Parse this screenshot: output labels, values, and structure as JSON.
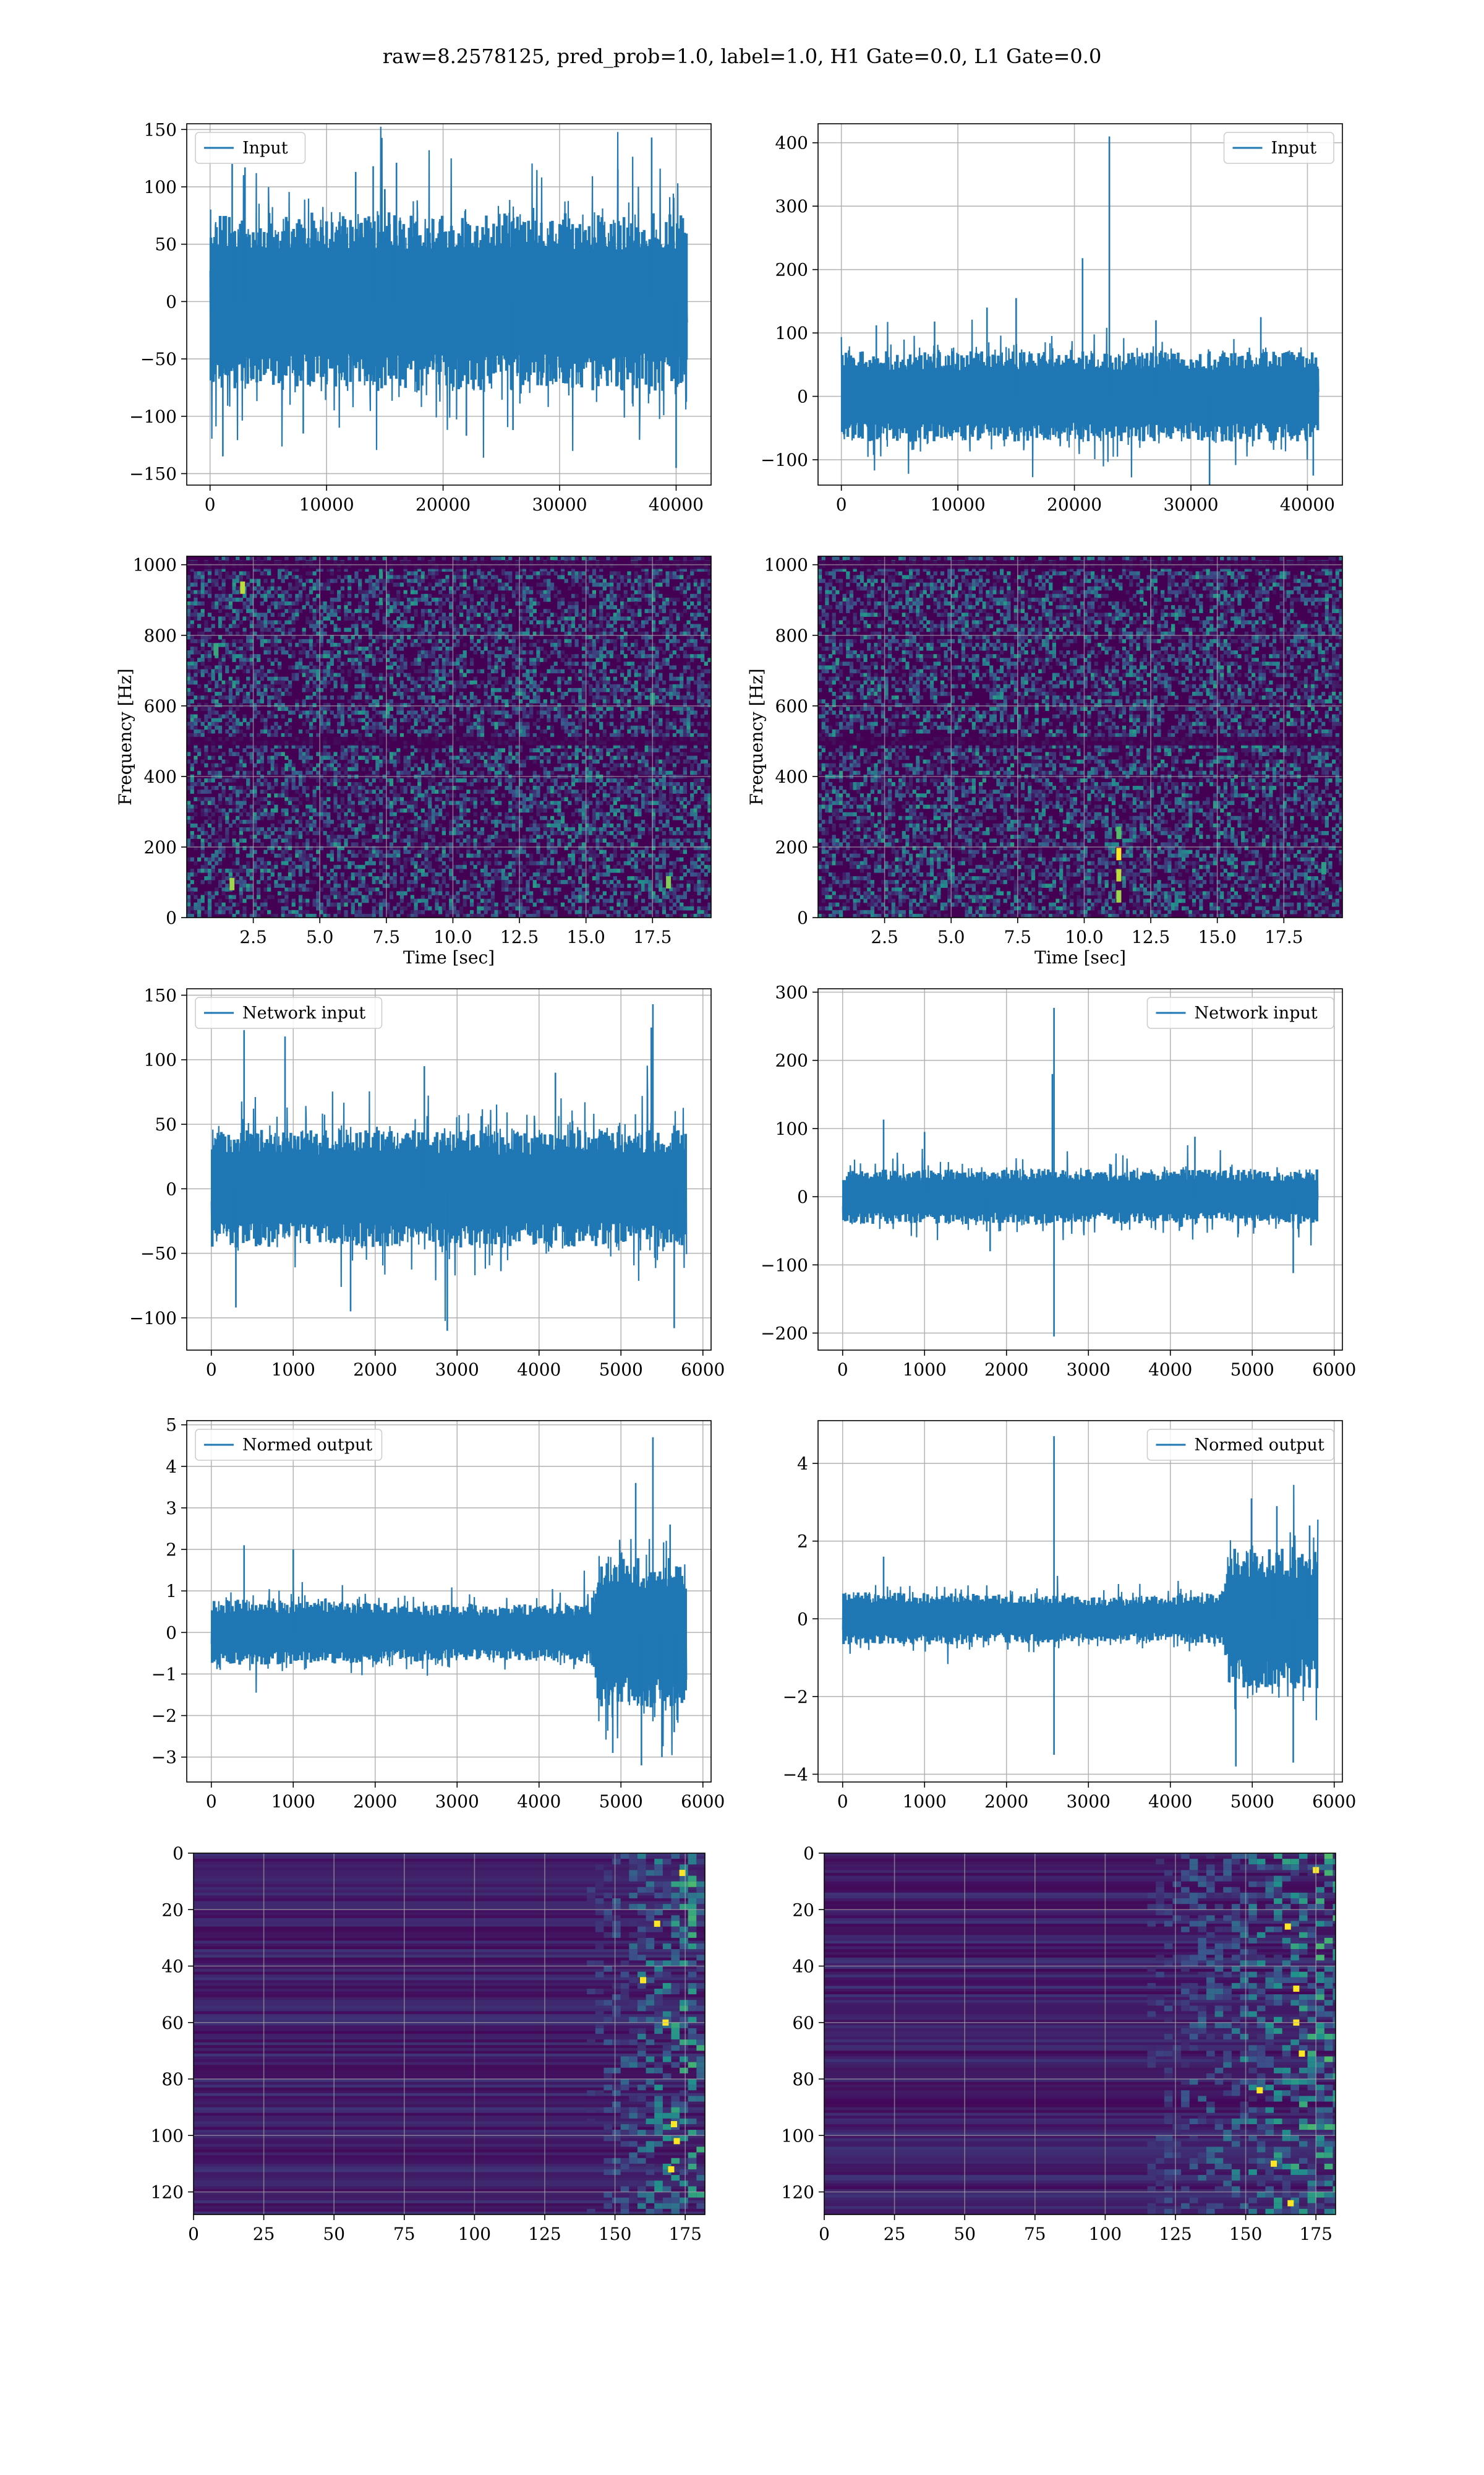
{
  "figure": {
    "suptitle": "raw=8.2578125, pred_prob=1.0, label=1.0, H1 Gate=0.0, L1 Gate=0.0",
    "colors": {
      "line": "#1f77b4",
      "grid": "#b0b0b0",
      "spec_bg": "#440154",
      "spec_mid": "#3b528b",
      "spec_hi": "#21918c",
      "spec_top": "#fde725"
    }
  },
  "chart_data": [
    {
      "id": "p11",
      "type": "line",
      "legend": "Input",
      "legend_loc": "upper left",
      "xlim": [
        -2000,
        43000
      ],
      "ylim": [
        -160,
        155
      ],
      "xticks": [
        0,
        10000,
        20000,
        30000,
        40000
      ],
      "xtick_labels": [
        "0",
        "10000",
        "20000",
        "30000",
        "40000"
      ],
      "yticks": [
        -150,
        -100,
        -50,
        0,
        50,
        100,
        150
      ],
      "ytick_labels": [
        "−150",
        "−100",
        "−50",
        "0",
        "50",
        "100",
        "150"
      ],
      "xlabel": "",
      "ylabel": "",
      "series": [
        {
          "n": 40960,
          "env": [
            [
              0,
              82
            ],
            [
              1,
              82
            ]
          ],
          "spikes": [
            [
              40000,
              -145
            ],
            [
              37900,
              143
            ],
            [
              1100,
              -135
            ],
            [
              16000,
              121
            ],
            [
              1900,
              120
            ],
            [
              14000,
              118
            ],
            [
              22000,
              -117
            ],
            [
              3000,
              117
            ],
            [
              35000,
              115
            ],
            [
              8000,
              -115
            ],
            [
              26000,
              -112
            ],
            [
              12500,
              113
            ]
          ]
        }
      ]
    },
    {
      "id": "p12",
      "type": "line",
      "legend": "Input",
      "legend_loc": "upper right",
      "xlim": [
        -2000,
        43000
      ],
      "ylim": [
        -140,
        430
      ],
      "xticks": [
        0,
        10000,
        20000,
        30000,
        40000
      ],
      "xtick_labels": [
        "0",
        "10000",
        "20000",
        "30000",
        "40000"
      ],
      "yticks": [
        -100,
        0,
        100,
        200,
        300,
        400
      ],
      "ytick_labels": [
        "−100",
        "0",
        "100",
        "200",
        "300",
        "400"
      ],
      "xlabel": "",
      "ylabel": "",
      "series": [
        {
          "n": 40960,
          "env": [
            [
              0,
              75
            ],
            [
              1,
              75
            ]
          ],
          "spikes": [
            [
              23000,
              410
            ],
            [
              20700,
              218
            ],
            [
              15000,
              155
            ],
            [
              31600,
              -140
            ],
            [
              40500,
              -125
            ],
            [
              12500,
              140
            ],
            [
              36000,
              125
            ],
            [
              8000,
              118
            ],
            [
              3000,
              112
            ],
            [
              27000,
              120
            ]
          ]
        }
      ]
    },
    {
      "id": "p21",
      "type": "heatmap",
      "xlim": [
        0,
        19.7
      ],
      "ylim": [
        0,
        1024
      ],
      "xticks": [
        2.5,
        5.0,
        7.5,
        10.0,
        12.5,
        15.0,
        17.5
      ],
      "xtick_labels": [
        "2.5",
        "5.0",
        "7.5",
        "10.0",
        "12.5",
        "15.0",
        "17.5"
      ],
      "yticks": [
        0,
        200,
        400,
        600,
        800,
        1000
      ],
      "ytick_labels": [
        "0",
        "200",
        "400",
        "600",
        "800",
        "1000"
      ],
      "xlabel": "Time [sec]",
      "ylabel": "Frequency [Hz]",
      "dark_bands_hz": [
        500,
        1000
      ],
      "hot_spots": [
        [
          2.1,
          935,
          0.9
        ],
        [
          1.7,
          95,
          0.85
        ],
        [
          18.1,
          100,
          0.8
        ],
        [
          1.1,
          760,
          0.6
        ],
        [
          17.5,
          620,
          0.55
        ]
      ]
    },
    {
      "id": "p22",
      "type": "heatmap",
      "xlim": [
        0,
        19.7
      ],
      "ylim": [
        0,
        1024
      ],
      "xticks": [
        2.5,
        5.0,
        7.5,
        10.0,
        12.5,
        15.0,
        17.5
      ],
      "xtick_labels": [
        "2.5",
        "5.0",
        "7.5",
        "10.0",
        "12.5",
        "15.0",
        "17.5"
      ],
      "yticks": [
        0,
        200,
        400,
        600,
        800,
        1000
      ],
      "ytick_labels": [
        "0",
        "200",
        "400",
        "600",
        "800",
        "1000"
      ],
      "xlabel": "Time [sec]",
      "ylabel": "Frequency [Hz]",
      "dark_bands_hz": [
        500,
        1000
      ],
      "hot_spots": [
        [
          11.3,
          180,
          1.0
        ],
        [
          11.3,
          120,
          0.9
        ],
        [
          11.3,
          60,
          0.85
        ],
        [
          11.3,
          240,
          0.7
        ],
        [
          19.0,
          140,
          0.55
        ]
      ]
    },
    {
      "id": "p31",
      "type": "line",
      "legend": "Network input",
      "legend_loc": "upper left",
      "xlim": [
        -300,
        6100
      ],
      "ylim": [
        -125,
        155
      ],
      "xticks": [
        0,
        1000,
        2000,
        3000,
        4000,
        5000,
        6000
      ],
      "xtick_labels": [
        "0",
        "1000",
        "2000",
        "3000",
        "4000",
        "5000",
        "6000"
      ],
      "yticks": [
        -100,
        -50,
        0,
        50,
        100,
        150
      ],
      "ytick_labels": [
        "−100",
        "−50",
        "0",
        "50",
        "100",
        "150"
      ],
      "xlabel": "",
      "ylabel": "",
      "series": [
        {
          "n": 5800,
          "env": [
            [
              0,
              48
            ],
            [
              1,
              48
            ]
          ],
          "spikes": [
            [
              5390,
              143
            ],
            [
              2880,
              -110
            ],
            [
              400,
              123
            ],
            [
              900,
              118
            ],
            [
              5370,
              125
            ],
            [
              1700,
              -95
            ],
            [
              5650,
              -108
            ],
            [
              300,
              -92
            ],
            [
              4200,
              90
            ],
            [
              2600,
              95
            ]
          ]
        }
      ]
    },
    {
      "id": "p32",
      "type": "line",
      "legend": "Network input",
      "legend_loc": "upper right",
      "xlim": [
        -300,
        6100
      ],
      "ylim": [
        -225,
        305
      ],
      "xticks": [
        0,
        1000,
        2000,
        3000,
        4000,
        5000,
        6000
      ],
      "xtick_labels": [
        "0",
        "1000",
        "2000",
        "3000",
        "4000",
        "5000",
        "6000"
      ],
      "yticks": [
        -200,
        -100,
        0,
        100,
        200,
        300
      ],
      "ytick_labels": [
        "−200",
        "−100",
        "0",
        "100",
        "200",
        "300"
      ],
      "xlabel": "",
      "ylabel": "",
      "series": [
        {
          "n": 5800,
          "env": [
            [
              0,
              42
            ],
            [
              1,
              42
            ]
          ],
          "spikes": [
            [
              2580,
              277
            ],
            [
              2580,
              -205
            ],
            [
              500,
              113
            ],
            [
              2560,
              180
            ],
            [
              5500,
              -112
            ],
            [
              1000,
              95
            ],
            [
              4300,
              88
            ],
            [
              1800,
              -80
            ]
          ]
        }
      ]
    },
    {
      "id": "p41",
      "type": "line",
      "legend": "Normed output",
      "legend_loc": "upper left",
      "xlim": [
        -300,
        6100
      ],
      "ylim": [
        -3.6,
        5.1
      ],
      "xticks": [
        0,
        1000,
        2000,
        3000,
        4000,
        5000,
        6000
      ],
      "xtick_labels": [
        "0",
        "1000",
        "2000",
        "3000",
        "4000",
        "5000",
        "6000"
      ],
      "yticks": [
        -3,
        -2,
        -1,
        0,
        1,
        2,
        3,
        4,
        5
      ],
      "ytick_labels": [
        "−3",
        "−2",
        "−1",
        "0",
        "1",
        "2",
        "3",
        "4",
        "5"
      ],
      "xlabel": "",
      "ylabel": "",
      "series": [
        {
          "n": 5800,
          "env": [
            [
              0,
              0.85
            ],
            [
              0.6,
              0.7
            ],
            [
              0.8,
              0.75
            ],
            [
              0.815,
              1.9
            ],
            [
              1,
              1.9
            ]
          ],
          "spikes": [
            [
              5390,
              4.7
            ],
            [
              5180,
              3.6
            ],
            [
              5250,
              -3.2
            ],
            [
              400,
              2.1
            ],
            [
              1000,
              2.0
            ],
            [
              5600,
              2.6
            ],
            [
              4900,
              -2.9
            ],
            [
              5500,
              -3.0
            ],
            [
              5650,
              -2.4
            ]
          ]
        }
      ]
    },
    {
      "id": "p42",
      "type": "line",
      "legend": "Normed output",
      "legend_loc": "upper right",
      "xlim": [
        -300,
        6100
      ],
      "ylim": [
        -4.2,
        5.1
      ],
      "xticks": [
        0,
        1000,
        2000,
        3000,
        4000,
        5000,
        6000
      ],
      "xtick_labels": [
        "0",
        "1000",
        "2000",
        "3000",
        "4000",
        "5000",
        "6000"
      ],
      "yticks": [
        -4,
        -2,
        0,
        2,
        4
      ],
      "ytick_labels": [
        "−4",
        "−2",
        "0",
        "2",
        "4"
      ],
      "xlabel": "",
      "ylabel": "",
      "series": [
        {
          "n": 5800,
          "env": [
            [
              0,
              0.75
            ],
            [
              0.6,
              0.6
            ],
            [
              0.8,
              0.7
            ],
            [
              0.815,
              1.9
            ],
            [
              1,
              1.9
            ]
          ],
          "spikes": [
            [
              2580,
              4.7
            ],
            [
              2580,
              -3.5
            ],
            [
              4990,
              3.1
            ],
            [
              4800,
              -3.8
            ],
            [
              5500,
              -3.7
            ],
            [
              5300,
              2.9
            ],
            [
              500,
              1.6
            ],
            [
              5700,
              2.4
            ]
          ]
        }
      ]
    },
    {
      "id": "p51",
      "type": "heatmap",
      "image": "rows",
      "xlim": [
        0,
        182
      ],
      "ylim": [
        128,
        0
      ],
      "xticks": [
        0,
        25,
        50,
        75,
        100,
        125,
        150,
        175
      ],
      "xtick_labels": [
        "0",
        "25",
        "50",
        "75",
        "100",
        "125",
        "150",
        "175"
      ],
      "yticks": [
        0,
        20,
        40,
        60,
        80,
        100,
        120
      ],
      "ytick_labels": [
        "0",
        "20",
        "40",
        "60",
        "80",
        "100",
        "120"
      ],
      "xlabel": "",
      "ylabel": "",
      "activity_start_col": 140,
      "hot_cells": [
        [
          168,
          60
        ],
        [
          170,
          112
        ],
        [
          172,
          102
        ],
        [
          165,
          25
        ],
        [
          160,
          45
        ],
        [
          171,
          96
        ],
        [
          174,
          7
        ]
      ]
    },
    {
      "id": "p52",
      "type": "heatmap",
      "image": "rows",
      "xlim": [
        0,
        182
      ],
      "ylim": [
        128,
        0
      ],
      "xticks": [
        0,
        25,
        50,
        75,
        100,
        125,
        150,
        175
      ],
      "xtick_labels": [
        "0",
        "25",
        "50",
        "75",
        "100",
        "125",
        "150",
        "175"
      ],
      "yticks": [
        0,
        20,
        40,
        60,
        80,
        100,
        120
      ],
      "ytick_labels": [
        "0",
        "20",
        "40",
        "60",
        "80",
        "100",
        "120"
      ],
      "xlabel": "",
      "ylabel": "",
      "activity_start_col": 115,
      "hot_cells": [
        [
          168,
          60
        ],
        [
          166,
          124
        ],
        [
          168,
          48
        ],
        [
          155,
          84
        ],
        [
          175,
          6
        ],
        [
          165,
          26
        ],
        [
          160,
          110
        ],
        [
          170,
          71
        ]
      ]
    }
  ]
}
